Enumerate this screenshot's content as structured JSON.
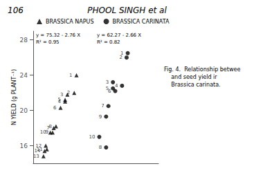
{
  "chart_data": {
    "type": "scatter",
    "title": "PHOOL SINGH et al",
    "page_number": "106",
    "y_label": "N YIELD (g PLANT⁻¹)",
    "xlim": [
      3.0,
      8.5
    ],
    "ylim": [
      14,
      29
    ],
    "yticks": [
      16,
      20,
      24,
      28
    ],
    "tick_labels": "y",
    "grid": false,
    "legend": "upper left",
    "series": [
      {
        "name": "BRASSICA NAPUS",
        "color": "#000000",
        "marker": "triangle",
        "x": [
          4.9,
          4.8,
          4.5,
          4.4,
          4.4,
          4.2,
          3.9,
          4.0,
          3.85,
          3.75,
          3.6,
          3.55,
          3.45,
          3.5
        ],
        "values": [
          24.0,
          22.0,
          21.8,
          21.0,
          21.2,
          20.3,
          18.0,
          18.2,
          17.5,
          17.5,
          15.6,
          16.0,
          14.8,
          15.4
        ],
        "point_labels": [
          "1",
          "2",
          "3",
          "4",
          "5",
          "6",
          "7",
          "8",
          "9",
          "10",
          "11",
          "12",
          "13",
          "14"
        ],
        "annotations": [
          "y = 75.32 - 2.76 X",
          "R² = 0.95"
        ]
      },
      {
        "name": "BRASSICA CARINATA",
        "color": "#000000",
        "marker": "circle",
        "x": [
          7.15,
          7.1,
          6.5,
          6.9,
          6.5,
          6.6,
          6.3,
          6.2,
          6.2,
          5.9
        ],
        "values": [
          26.5,
          26.0,
          23.2,
          22.8,
          22.5,
          22.2,
          20.5,
          15.8,
          19.3,
          17.0
        ],
        "point_labels": [
          "1",
          "2",
          "3",
          "4",
          "5",
          "6",
          "7",
          "8",
          "9",
          "10"
        ],
        "annotations": [
          "y = 62.27 - 2.66 X",
          "R² = 0.82"
        ]
      }
    ],
    "caption": "Fig. 4.  Relationship betwee\n    and seed yield ir\n    Brassica carinata."
  }
}
